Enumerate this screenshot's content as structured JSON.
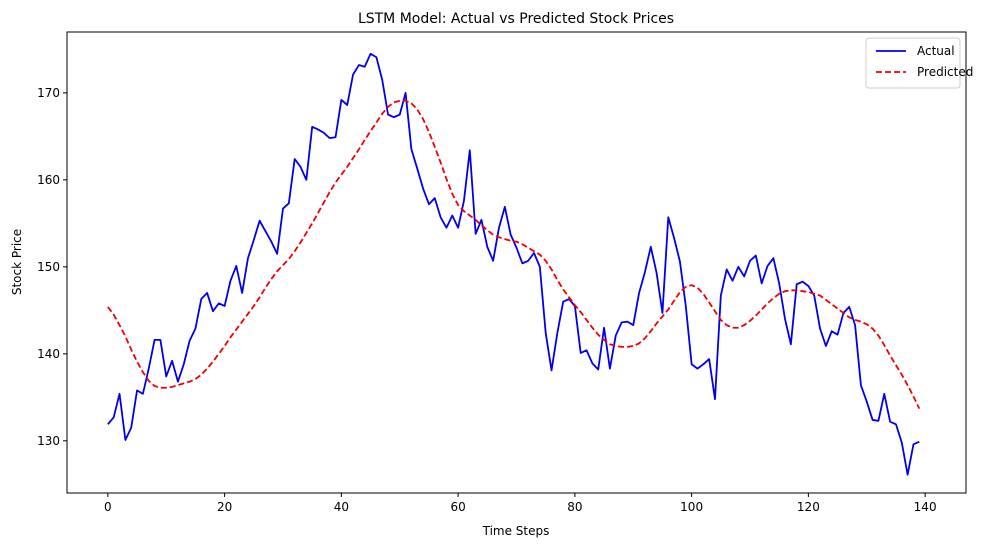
{
  "chart_data": {
    "type": "line",
    "title": "LSTM Model: Actual vs Predicted Stock Prices",
    "xlabel": "Time Steps",
    "ylabel": "Stock Price",
    "xlim": [
      -7,
      147
    ],
    "ylim": [
      124,
      177
    ],
    "x_ticks": [
      0,
      20,
      40,
      60,
      80,
      100,
      120,
      140
    ],
    "y_ticks": [
      130,
      140,
      150,
      160,
      170
    ],
    "grid": false,
    "legend_position": "top-right",
    "series": [
      {
        "name": "Actual",
        "color": "#0000ee",
        "style": "solid",
        "values": [
          131.9,
          132.7,
          135.4,
          130.1,
          131.5,
          135.8,
          135.4,
          138.3,
          141.6,
          141.6,
          137.4,
          139.2,
          136.8,
          138.8,
          141.5,
          142.9,
          146.3,
          147.0,
          144.9,
          145.8,
          145.5,
          148.4,
          150.1,
          147.0,
          151.0,
          153.1,
          155.3,
          154.1,
          152.9,
          151.5,
          156.7,
          157.3,
          162.4,
          161.5,
          160.0,
          166.1,
          165.8,
          165.4,
          164.8,
          164.9,
          169.2,
          168.6,
          172.1,
          173.2,
          173.0,
          174.5,
          174.1,
          171.5,
          167.5,
          167.2,
          167.5,
          170.0,
          163.5,
          161.3,
          159.0,
          157.2,
          157.9,
          155.7,
          154.5,
          155.9,
          154.5,
          157.6,
          163.4,
          153.8,
          155.4,
          152.3,
          150.7,
          154.5,
          156.9,
          153.7,
          152.2,
          150.4,
          150.7,
          151.6,
          150.0,
          142.4,
          138.1,
          142.4,
          146.0,
          146.3,
          145.5,
          140.1,
          140.4,
          138.9,
          138.2,
          143.0,
          138.3,
          142.1,
          143.6,
          143.7,
          143.3,
          147.0,
          149.4,
          152.3,
          149.3,
          144.7,
          155.7,
          153.3,
          150.6,
          145.5,
          138.8,
          138.3,
          138.8,
          139.4,
          134.8,
          146.7,
          149.7,
          148.4,
          150.0,
          148.9,
          150.7,
          151.3,
          148.1,
          150.1,
          151.0,
          148.1,
          144.0,
          141.1,
          148.0,
          148.3,
          147.8,
          146.7,
          142.9,
          140.9,
          142.6,
          142.2,
          144.7,
          145.4,
          143.3,
          136.4,
          134.5,
          132.4,
          132.3,
          135.4,
          132.2,
          131.9,
          129.8,
          126.1,
          129.6,
          129.9
        ]
      },
      {
        "name": "Predicted",
        "color": "#ee0000",
        "style": "dashed",
        "values": [
          145.4,
          144.5,
          143.3,
          142.0,
          140.5,
          139.1,
          137.9,
          136.9,
          136.3,
          136.1,
          136.1,
          136.2,
          136.4,
          136.6,
          136.8,
          137.1,
          137.6,
          138.3,
          139.1,
          140.0,
          140.9,
          141.9,
          142.8,
          143.7,
          144.6,
          145.5,
          146.5,
          147.6,
          148.6,
          149.5,
          150.2,
          150.9,
          151.8,
          152.8,
          153.9,
          155.0,
          156.2,
          157.4,
          158.6,
          159.7,
          160.6,
          161.5,
          162.5,
          163.5,
          164.6,
          165.6,
          166.6,
          167.6,
          168.4,
          168.9,
          169.1,
          169.1,
          168.8,
          168.1,
          167.0,
          165.5,
          163.8,
          162.0,
          160.1,
          158.4,
          157.1,
          156.4,
          155.9,
          155.4,
          154.8,
          154.2,
          153.7,
          153.4,
          153.2,
          153.0,
          152.9,
          152.6,
          152.2,
          151.8,
          151.4,
          150.7,
          149.7,
          148.5,
          147.4,
          146.5,
          145.6,
          144.8,
          143.9,
          143.0,
          142.2,
          141.6,
          141.1,
          140.9,
          140.8,
          140.8,
          140.9,
          141.2,
          141.8,
          142.6,
          143.5,
          144.3,
          145.1,
          146.1,
          147.1,
          147.7,
          147.9,
          147.6,
          146.9,
          145.9,
          144.9,
          143.9,
          143.3,
          143.0,
          143.0,
          143.3,
          143.8,
          144.4,
          145.1,
          145.8,
          146.4,
          146.9,
          147.2,
          147.3,
          147.3,
          147.2,
          147.1,
          146.9,
          146.7,
          146.2,
          145.7,
          145.2,
          144.7,
          144.2,
          143.9,
          143.7,
          143.4,
          142.9,
          142.1,
          141.0,
          139.8,
          138.7,
          137.6,
          136.4,
          135.1,
          133.7
        ]
      }
    ]
  }
}
